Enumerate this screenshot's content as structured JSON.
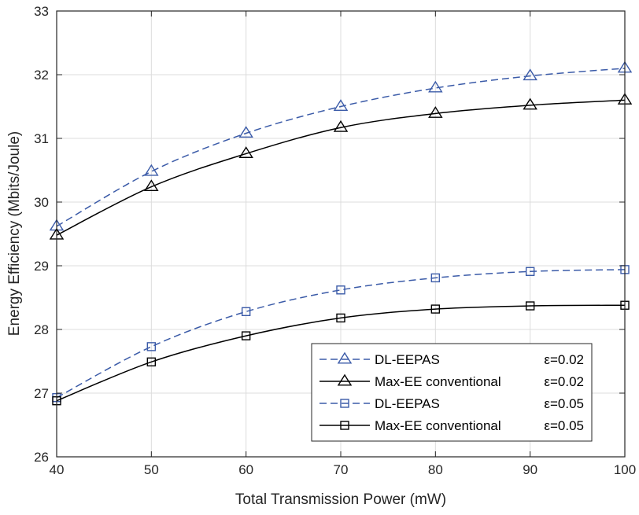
{
  "chart_data": {
    "type": "line",
    "title": "",
    "xlabel": "Total Transmission Power (mW)",
    "ylabel": "Energy Efficiency (Mbits/Joule)",
    "xlim": [
      40,
      100
    ],
    "ylim": [
      26,
      33
    ],
    "x_ticks": [
      "40",
      "50",
      "60",
      "70",
      "80",
      "90",
      "100"
    ],
    "y_ticks": [
      "26",
      "27",
      "28",
      "29",
      "30",
      "31",
      "32",
      "33"
    ],
    "grid": true,
    "legend_position": "bottom-right",
    "x": [
      40,
      50,
      60,
      70,
      80,
      90,
      100
    ],
    "series": [
      {
        "name": "DL-EEPAS",
        "param": "ε=0.02",
        "marker": "triangle",
        "dash": true,
        "color": "#3b5ba8",
        "values": [
          29.62,
          30.48,
          31.08,
          31.5,
          31.79,
          31.98,
          32.1
        ]
      },
      {
        "name": "Max-EE conventional",
        "param": "ε=0.02",
        "marker": "triangle",
        "dash": false,
        "color": "#000000",
        "values": [
          29.48,
          30.24,
          30.76,
          31.17,
          31.39,
          31.52,
          31.6
        ]
      },
      {
        "name": "DL-EEPAS",
        "param": "ε=0.05",
        "marker": "square",
        "dash": true,
        "color": "#3b5ba8",
        "values": [
          26.93,
          27.73,
          28.28,
          28.62,
          28.81,
          28.91,
          28.94
        ]
      },
      {
        "name": "Max-EE conventional",
        "param": "ε=0.05",
        "marker": "square",
        "dash": false,
        "color": "#000000",
        "values": [
          26.88,
          27.49,
          27.9,
          28.18,
          28.32,
          28.37,
          28.38
        ]
      }
    ]
  }
}
